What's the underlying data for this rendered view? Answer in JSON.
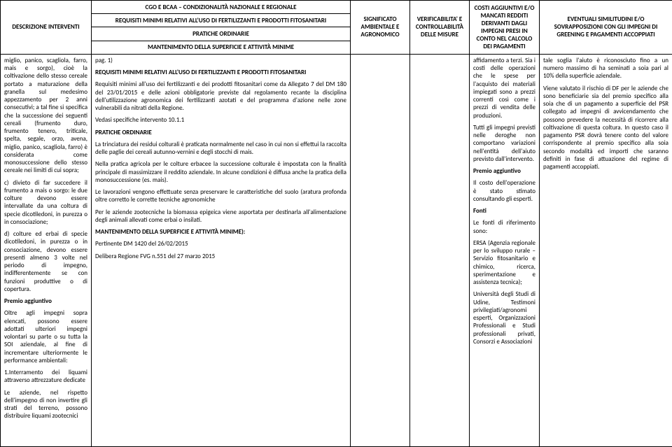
{
  "headers": {
    "col1": "DESCRIZIONE INTERVENTI",
    "col2_main": "CGO E BCAA – CONDIZIONALITÀ NAZIONALE E REGIONALE",
    "col2_sub1": "REQUISITI MINIMI RELATIVI ALL'USO DI FERTILIZZANTI E PRODOTTI FITOSANITARI",
    "col2_sub2": "PRATICHE ORDINARIE",
    "col2_sub3": "MANTENIMENTO DELLA SUPERFICIE E ATTIVITÀ MINIME",
    "col3": "SIGNIFICATO AMBIENTALE E AGRONOMICO",
    "col4": "VERIFICABILITA' E CONTROLLABILITÀ DELLE MISURE",
    "col5": "COSTI AGGIUNTIVI E/O MANCATI REDDITI DERIVANTI DAGLI IMPEGNI PRESI IN CONTO NEL CALCOLO DEI PAGAMENTI",
    "col6": "EVENTUALI SIMILITUDINI E/O SOVRAPPOSIZIONI CON GLI IMPEGNI DI GREENING E PAGAMENTI ACCOPPIATI"
  },
  "col1_body": {
    "p1": "miglio, panico, scagliola, farro, mais e sorgo), cioè la coltivazione dello stesso cereale portato a maturazione della granella sul medesimo appezzamento per 2 anni consecutivi; a tal fine si specifica che la successione dei seguenti cereali (frumento duro, frumento tenero, triticale, spelta, segale, orzo, avena, miglio, panico, scagliola, farro) è considerata come monosuccessione dello stesso cereale nei limiti di cui sopra;",
    "p2": "c) divieto di far succedere il frumento a mais o sorgo: le due colture devono essere intervallate da una coltura di specie dicotiledoni, in purezza o in consociazione;",
    "p3": "d) colture ed erbai di specie dicotiledoni, in purezza o in consociazione, devono essere presenti almeno 3 volte nel periodo di impegno, indifferentemente se con funzioni produttive o di copertura.",
    "premio_label": "Premio aggiuntivo",
    "p4": "Oltre agli impegni sopra elencati, possono essere adottati ulteriori impegni volontari su parte o su tutta la SOI aziendale, al fine di incrementare ulteriormente le performance ambientali:",
    "p5": "1.Interramento dei liquami attraverso attrezzature dedicate",
    "p6": "Le aziende, nel rispetto dell'impegno di non invertire gli strati del terreno, possono distribuire liquami zootecnici"
  },
  "col2_body": {
    "p0": "pag. 1)",
    "h1": "REQUISITI MINIMI RELATIVI ALL'USO DI FERTILIZZANTI E PRODOTTI FITOSANITARI",
    "p1": "Requisiti minimi all'uso dei fertilizzanti e dei prodotti fitosanitari come da Allegato 7 del DM 180 del 23/01/2015 e delle azioni obbligatorie previste dal regolamento recante la disciplina dell'utilizzazione agronomica dei fertilizzanti azotati e del programma d'azione nelle zone vulnerabili da nitrati della Regione.",
    "p2": "Vedasi specifiche intervento 10.1.1",
    "h2": "PRATICHE ORDINARIE",
    "p3": "La trinciatura dei residui colturali è praticata normalmente nel caso in cui non si effettui la raccolta delle paglie dei cereali autunno-vernini e degli stocchi di mais.",
    "p4": "Nella pratica agricola per le colture erbacee la successione colturale è impostata con la finalità principale di massimizzare il reddito aziendale. In alcune condizioni è diffusa anche la pratica della monosuccessione (es. mais).",
    "p5": "Le lavorazioni vengono effettuate senza  preservare le caratteristiche del suolo (aratura profonda oltre corretto le corrette tecniche agronomiche",
    "p6": "Per le aziende zootecniche la biomassa epigeica viene asportata per destinarla all'alimentazione degli animali allevati come erbai o insilati.",
    "h3": "MANTENIMENTO DELLA SUPERFICIE E ATTIVITÀ MINIME):",
    "p7": "Pertinente DM 1420 del 26/02/2015",
    "p8": "Delibera Regione FVG n.551 del 27 marzo 2015"
  },
  "col5_body": {
    "p1": "affidamento a terzi. Sia i costi delle operazioni che le spese per l'acquisto dei materiali impiegati sono a prezzi correnti così come i prezzi di vendita delle produzioni.",
    "p2": "Tutti gli impegni previsti nelle deroghe non comportano variazioni nell'entità dell'aiuto previsto dall'intervento.",
    "premio_label": "Premio aggiuntivo",
    "p3": "Il costo dell'operazione è stato stimato consultando gli esperti.",
    "fonti_label": "Fonti",
    "p4": "Le fonti di riferimento sono:",
    "p5": "ERSA (Agenzia regionale per lo sviluppo rurale – Servizio fitosanitario e chimico, ricerca, sperimentazione e assistenza tecnica);",
    "p6": "Università degli Studi di Udine, Testimoni privilegiati/agronomi esperti, Organizzazioni Professionali e Studi professionali privati, Consorzi e Associazioni"
  },
  "col6_body": {
    "p1": "tale soglia l'aiuto è riconosciuto fino a un numero massimo di ha seminati a soia pari al 10% della superficie aziendale.",
    "p2": "Viene valutato il rischio di DF per le aziende che sono beneficiarie sia del premio specifico alla soia che di un pagamento a superficie del PSR collegato ad impegni di avvicendamento che possono prevedere la necessità di ricorrere alla coltivazione di questa coltura. In questo caso il pagamento PSR dovrà tenere conto del valore corrispondente al premio specifico alla soia secondo modalità ed importi che saranno definiti in fase di attuazione del regime di pagamenti accoppiati."
  }
}
